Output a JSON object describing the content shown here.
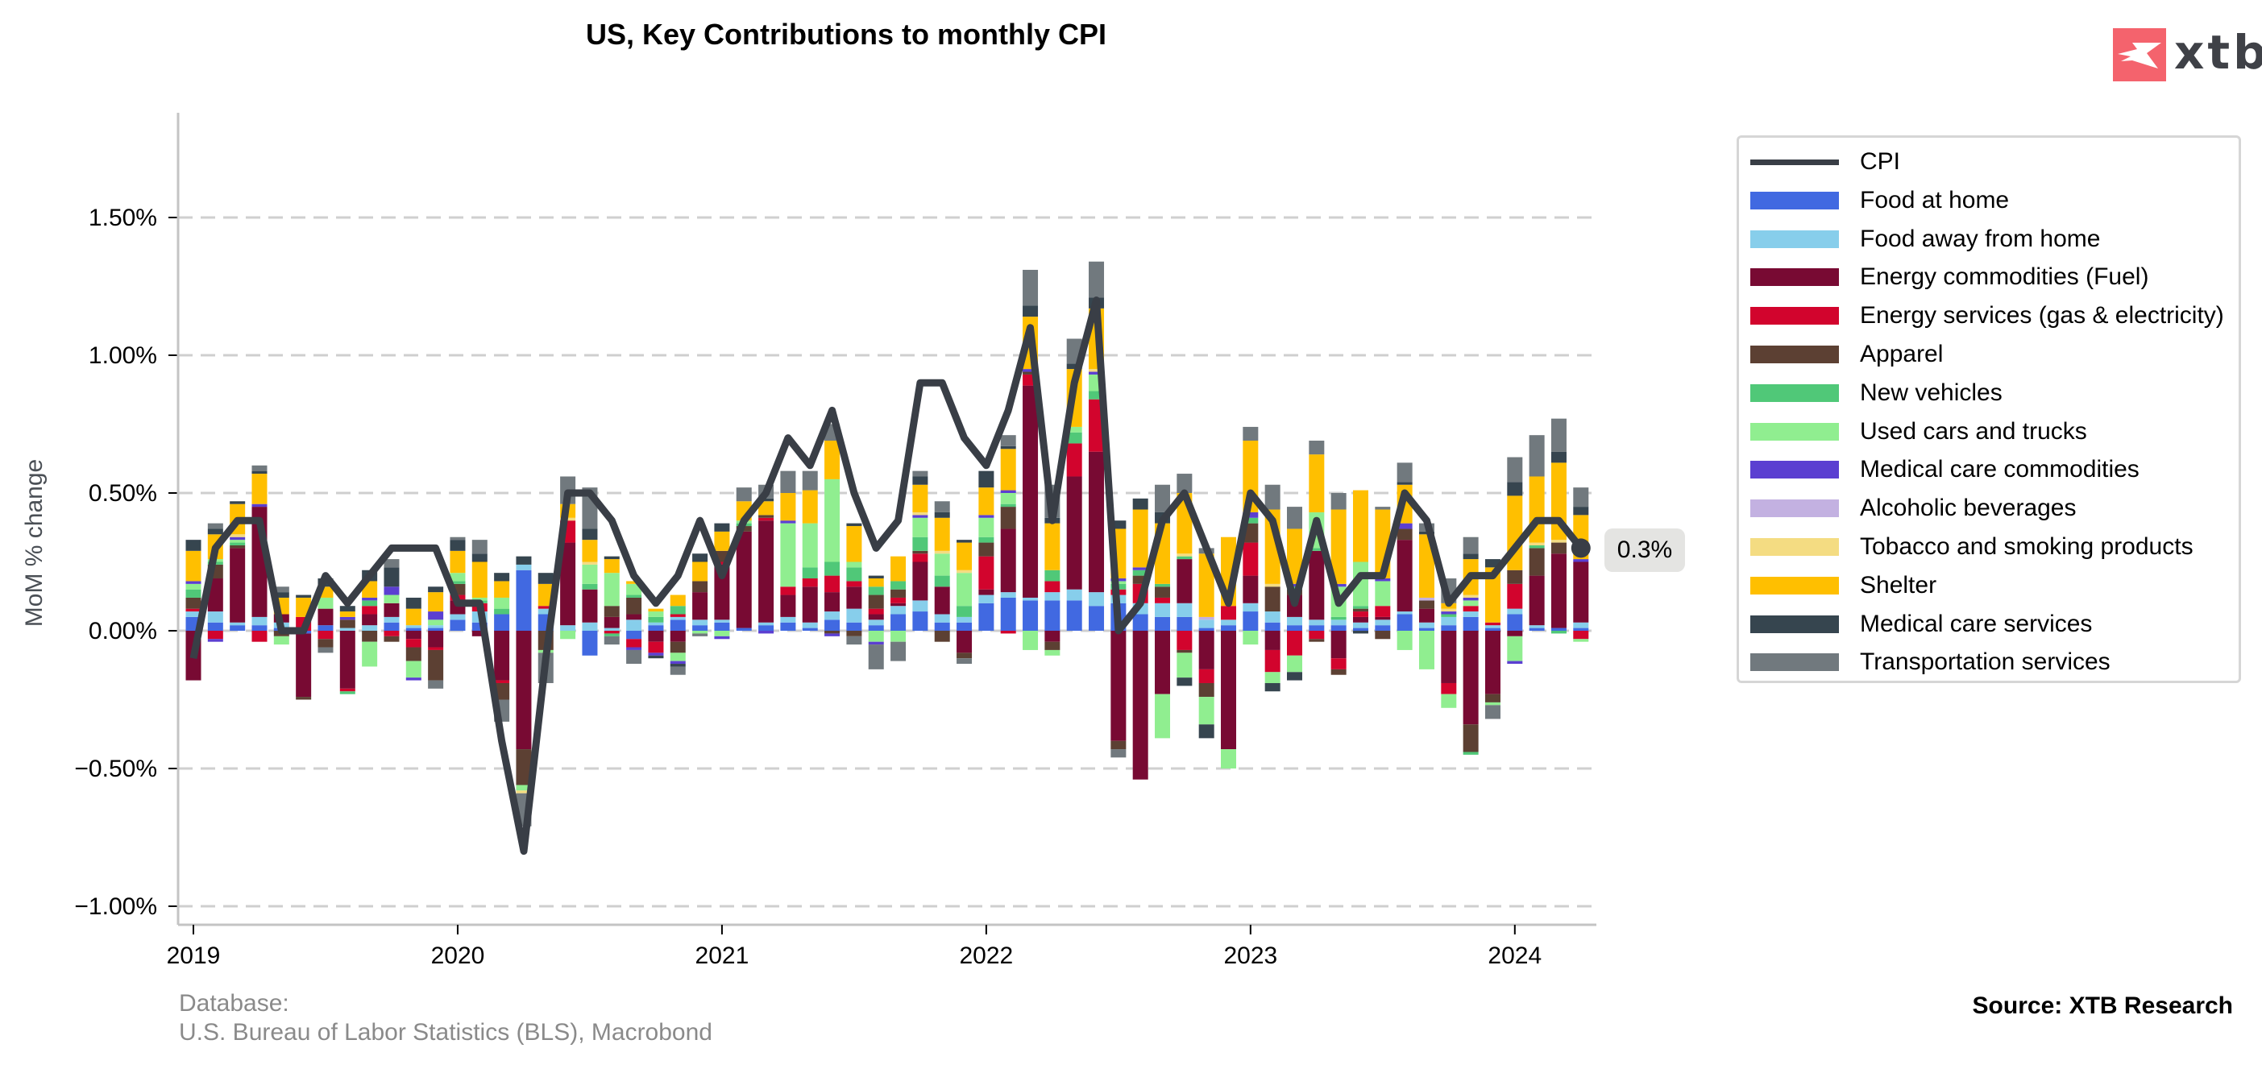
{
  "header": {
    "title": "US, Key Contributions to monthly CPI",
    "logo_text": "xtb"
  },
  "footer": {
    "database_label": "Database:",
    "database_value": "U.S. Bureau of Labor Statistics (BLS), Macrobond",
    "source": "Source: XTB Research"
  },
  "last_value_label": "0.3%",
  "chart_data": {
    "type": "bar",
    "stacked": true,
    "title": "US, Key Contributions to monthly CPI",
    "xlabel": "",
    "ylabel": "MoM % change",
    "ylim": [
      -1.05,
      1.88
    ],
    "yticks": [
      -1.0,
      -0.5,
      0.0,
      0.5,
      1.0,
      1.5
    ],
    "ytick_labels": [
      "−1.00%",
      "−0.50%",
      "0.00%",
      "0.50%",
      "1.00%",
      "1.50%"
    ],
    "xticks": [
      "2019",
      "2020",
      "2021",
      "2022",
      "2023",
      "2024"
    ],
    "grid": "horizontal-dashed",
    "legend_position": "right",
    "start_month": "2019-01",
    "n_months": 64,
    "line_series": {
      "name": "CPI",
      "color": "#393e46",
      "values": [
        -0.1,
        0.3,
        0.4,
        0.4,
        0.0,
        0.0,
        0.2,
        0.1,
        0.2,
        0.3,
        0.3,
        0.3,
        0.1,
        0.1,
        -0.4,
        -0.8,
        -0.1,
        0.5,
        0.5,
        0.4,
        0.2,
        0.1,
        0.2,
        0.4,
        0.2,
        0.4,
        0.5,
        0.7,
        0.6,
        0.8,
        0.5,
        0.3,
        0.4,
        0.9,
        0.9,
        0.7,
        0.6,
        0.8,
        1.1,
        0.4,
        0.9,
        1.2,
        0.0,
        0.1,
        0.4,
        0.5,
        0.3,
        0.1,
        0.5,
        0.4,
        0.1,
        0.4,
        0.1,
        0.2,
        0.2,
        0.5,
        0.4,
        0.1,
        0.2,
        0.2,
        0.3,
        0.4,
        0.4,
        0.3
      ]
    },
    "series": [
      {
        "name": "Food at home",
        "color": "#4169e1"
      },
      {
        "name": "Food away from home",
        "color": "#87ceeb"
      },
      {
        "name": "Energy commodities (Fuel)",
        "color": "#780a33"
      },
      {
        "name": "Energy services (gas & electricity)",
        "color": "#d2042d"
      },
      {
        "name": "Apparel",
        "color": "#5c4033"
      },
      {
        "name": "New vehicles",
        "color": "#50c878"
      },
      {
        "name": "Used cars and trucks",
        "color": "#90ee90"
      },
      {
        "name": "Medical care commodities",
        "color": "#5b3fd1"
      },
      {
        "name": "Alcoholic beverages",
        "color": "#c3b1e1"
      },
      {
        "name": "Tobacco and smoking products",
        "color": "#f4dc82"
      },
      {
        "name": "Shelter",
        "color": "#ffbf00"
      },
      {
        "name": "Medical care services",
        "color": "#36454f"
      },
      {
        "name": "Transportation services",
        "color": "#71797e"
      }
    ],
    "components": [
      [
        0.05,
        0.02,
        -0.18,
        0.01,
        0.04,
        0.03,
        0.02,
        0.01,
        0.0,
        0.0,
        0.11,
        0.04,
        0.0
      ],
      [
        0.03,
        0.04,
        0.12,
        -0.03,
        0.05,
        0.01,
        0.01,
        -0.01,
        0.0,
        0.0,
        0.09,
        0.02,
        0.02
      ],
      [
        0.02,
        0.01,
        0.27,
        0.0,
        0.01,
        0.01,
        0.01,
        0.01,
        0.0,
        0.01,
        0.11,
        0.01,
        0.0
      ],
      [
        0.02,
        0.03,
        0.4,
        -0.04,
        0.0,
        0.0,
        0.0,
        0.01,
        0.0,
        0.0,
        0.11,
        0.01,
        0.02
      ],
      [
        0.01,
        0.02,
        0.03,
        0.0,
        -0.02,
        0.0,
        -0.03,
        0.0,
        0.0,
        0.0,
        0.06,
        0.02,
        0.02
      ],
      [
        -0.01,
        0.0,
        -0.23,
        0.05,
        -0.01,
        0.0,
        0.0,
        0.0,
        0.0,
        0.0,
        0.07,
        0.01,
        0.0
      ],
      [
        0.02,
        0.0,
        0.06,
        -0.03,
        -0.03,
        0.0,
        0.04,
        0.0,
        0.0,
        0.0,
        0.04,
        0.03,
        -0.02
      ],
      [
        0.0,
        0.01,
        -0.21,
        -0.01,
        0.03,
        -0.01,
        0.0,
        0.01,
        0.0,
        0.0,
        0.02,
        0.02,
        0.0
      ],
      [
        0.0,
        0.02,
        0.04,
        0.03,
        -0.04,
        0.02,
        -0.09,
        0.01,
        0.0,
        0.0,
        0.06,
        0.04,
        0.0
      ],
      [
        0.03,
        0.02,
        0.05,
        -0.02,
        -0.02,
        0.0,
        0.03,
        0.03,
        0.0,
        0.0,
        0.0,
        0.07,
        0.03
      ],
      [
        0.01,
        0.01,
        -0.03,
        -0.03,
        -0.05,
        0.0,
        -0.06,
        -0.01,
        0.0,
        0.0,
        0.06,
        0.04,
        0.0
      ],
      [
        0.01,
        0.01,
        -0.06,
        -0.01,
        -0.11,
        0.0,
        0.02,
        0.03,
        0.0,
        0.0,
        0.07,
        0.02,
        -0.03
      ],
      [
        0.04,
        0.02,
        0.05,
        0.02,
        0.04,
        0.01,
        0.03,
        0.0,
        0.0,
        0.0,
        0.08,
        0.04,
        0.01
      ],
      [
        0.03,
        0.04,
        -0.02,
        0.03,
        0.0,
        0.01,
        0.01,
        0.0,
        0.0,
        0.0,
        0.13,
        0.03,
        0.05
      ],
      [
        0.06,
        0.0,
        -0.18,
        -0.01,
        -0.06,
        0.02,
        0.04,
        0.0,
        0.0,
        0.0,
        0.06,
        0.03,
        -0.08
      ],
      [
        0.22,
        0.02,
        -0.43,
        0.0,
        -0.13,
        0.0,
        -0.02,
        0.0,
        0.0,
        -0.01,
        0.0,
        0.03,
        -0.12
      ],
      [
        0.06,
        0.02,
        0.0,
        0.01,
        -0.07,
        0.0,
        -0.01,
        0.0,
        0.0,
        0.0,
        0.08,
        0.04,
        -0.11
      ],
      [
        0.0,
        0.02,
        0.3,
        0.08,
        0.0,
        0.0,
        -0.03,
        0.0,
        0.0,
        0.01,
        0.05,
        0.0,
        0.1
      ],
      [
        -0.09,
        0.03,
        0.12,
        0.0,
        0.0,
        0.02,
        0.07,
        0.0,
        0.0,
        0.01,
        0.08,
        0.04,
        0.15
      ],
      [
        0.0,
        0.01,
        0.04,
        -0.01,
        0.04,
        -0.01,
        0.12,
        0.0,
        0.0,
        0.0,
        0.05,
        0.01,
        -0.03
      ],
      [
        -0.03,
        0.04,
        0.02,
        -0.03,
        0.06,
        0.01,
        0.04,
        -0.01,
        0.0,
        0.0,
        0.01,
        0.0,
        -0.05
      ],
      [
        0.02,
        0.01,
        -0.04,
        -0.04,
        0.0,
        0.02,
        0.02,
        -0.01,
        0.0,
        0.0,
        0.01,
        -0.01,
        0.0
      ],
      [
        0.04,
        0.01,
        -0.04,
        0.01,
        -0.04,
        0.03,
        -0.03,
        -0.01,
        0.0,
        0.0,
        0.04,
        -0.01,
        -0.03
      ],
      [
        0.02,
        0.02,
        0.1,
        0.0,
        0.04,
        0.0,
        -0.01,
        0.0,
        0.0,
        0.0,
        0.07,
        0.03,
        -0.01
      ],
      [
        0.03,
        0.01,
        0.2,
        0.01,
        0.04,
        0.0,
        -0.02,
        -0.01,
        0.0,
        0.0,
        0.07,
        0.03,
        0.0
      ],
      [
        0.01,
        0.0,
        0.35,
        0.0,
        0.02,
        0.01,
        0.01,
        0.0,
        0.0,
        0.0,
        0.07,
        0.0,
        0.05
      ],
      [
        0.02,
        0.01,
        0.37,
        0.01,
        0.01,
        0.0,
        0.0,
        -0.01,
        0.0,
        0.0,
        0.05,
        0.01,
        0.05
      ],
      [
        0.03,
        0.02,
        0.08,
        0.03,
        0.0,
        0.0,
        0.23,
        0.01,
        0.0,
        0.0,
        0.1,
        0.0,
        0.08
      ],
      [
        0.01,
        0.02,
        0.13,
        0.03,
        0.0,
        0.04,
        0.16,
        0.0,
        0.0,
        0.0,
        0.12,
        0.0,
        0.07
      ],
      [
        0.04,
        0.03,
        0.07,
        0.06,
        -0.01,
        0.05,
        0.3,
        -0.01,
        0.0,
        0.0,
        0.14,
        0.0,
        0.06
      ],
      [
        0.03,
        0.05,
        0.08,
        0.02,
        -0.02,
        0.05,
        0.02,
        0.0,
        0.0,
        0.0,
        0.13,
        0.01,
        -0.03
      ],
      [
        0.02,
        0.02,
        0.02,
        0.02,
        0.05,
        0.03,
        -0.04,
        -0.01,
        0.0,
        0.0,
        0.03,
        0.01,
        -0.09
      ],
      [
        0.06,
        0.03,
        0.01,
        0.02,
        0.03,
        0.03,
        -0.04,
        0.0,
        0.0,
        0.0,
        0.09,
        0.0,
        -0.07
      ],
      [
        0.07,
        0.04,
        0.14,
        0.03,
        0.01,
        0.05,
        0.07,
        0.01,
        0.0,
        0.01,
        0.1,
        0.03,
        0.02
      ],
      [
        0.03,
        0.03,
        0.1,
        0.0,
        -0.04,
        0.04,
        0.08,
        0.0,
        0.0,
        0.01,
        0.12,
        0.02,
        0.04
      ],
      [
        0.03,
        0.02,
        -0.08,
        0.0,
        -0.02,
        0.04,
        0.12,
        0.0,
        0.0,
        0.01,
        0.1,
        0.01,
        -0.02
      ],
      [
        0.1,
        0.03,
        0.02,
        0.12,
        0.05,
        0.02,
        0.07,
        0.01,
        0.0,
        0.0,
        0.1,
        0.06,
        0.0
      ],
      [
        0.12,
        0.02,
        0.23,
        -0.01,
        0.08,
        0.01,
        0.04,
        0.01,
        0.0,
        0.0,
        0.15,
        0.01,
        0.04
      ],
      [
        0.11,
        0.01,
        0.77,
        0.04,
        0.01,
        0.0,
        -0.07,
        0.01,
        0.0,
        0.0,
        0.19,
        0.04,
        0.13
      ],
      [
        0.11,
        0.03,
        -0.04,
        0.04,
        -0.03,
        0.04,
        -0.02,
        0.0,
        0.0,
        0.0,
        0.17,
        0.02,
        0.12
      ],
      [
        0.11,
        0.04,
        0.41,
        0.12,
        0.0,
        0.04,
        0.02,
        0.0,
        0.0,
        0.0,
        0.21,
        0.02,
        0.09
      ],
      [
        0.09,
        0.05,
        0.51,
        0.19,
        0.0,
        0.03,
        0.06,
        0.01,
        0.0,
        0.01,
        0.22,
        0.04,
        0.13
      ],
      [
        0.1,
        0.03,
        -0.4,
        0.02,
        -0.03,
        0.02,
        0.01,
        0.01,
        0.0,
        0.0,
        0.18,
        0.03,
        -0.03
      ],
      [
        0.06,
        0.04,
        -0.54,
        0.07,
        0.03,
        0.02,
        0.0,
        0.01,
        0.0,
        0.0,
        0.21,
        0.04,
        0.0
      ],
      [
        0.05,
        0.05,
        -0.23,
        0.02,
        0.04,
        0.01,
        -0.16,
        0.0,
        0.0,
        0.0,
        0.22,
        0.04,
        0.1
      ],
      [
        0.05,
        0.05,
        0.16,
        -0.07,
        -0.01,
        0.01,
        -0.09,
        0.0,
        0.0,
        0.01,
        0.22,
        -0.03,
        0.07
      ],
      [
        0.01,
        0.03,
        -0.14,
        -0.05,
        -0.05,
        0.0,
        -0.1,
        0.0,
        0.01,
        0.0,
        0.23,
        -0.05,
        0.02
      ],
      [
        0.02,
        0.02,
        -0.43,
        0.05,
        0.0,
        0.0,
        -0.07,
        0.0,
        0.0,
        0.0,
        0.25,
        0.0,
        0.0
      ],
      [
        0.07,
        0.03,
        0.1,
        0.12,
        0.07,
        0.02,
        -0.05,
        0.02,
        0.0,
        0.0,
        0.26,
        0.0,
        0.05
      ],
      [
        0.03,
        0.04,
        -0.07,
        -0.08,
        0.09,
        0.0,
        -0.04,
        0.0,
        0.0,
        0.01,
        0.27,
        -0.03,
        0.09
      ],
      [
        0.02,
        0.03,
        0.08,
        -0.09,
        0.02,
        0.01,
        -0.06,
        0.01,
        0.0,
        0.0,
        0.2,
        -0.03,
        0.08
      ],
      [
        0.02,
        0.02,
        0.25,
        -0.03,
        -0.01,
        0.01,
        0.13,
        0.0,
        0.0,
        0.0,
        0.21,
        0.0,
        0.05
      ],
      [
        0.02,
        0.02,
        -0.1,
        -0.04,
        -0.02,
        0.01,
        0.11,
        0.01,
        0.0,
        0.0,
        0.27,
        0.0,
        0.06
      ],
      [
        0.01,
        0.02,
        0.02,
        0.02,
        0.01,
        0.01,
        0.16,
        0.0,
        0.0,
        0.0,
        0.26,
        -0.01,
        0.0
      ],
      [
        0.02,
        0.02,
        0.01,
        0.04,
        -0.03,
        0.0,
        0.09,
        0.01,
        0.0,
        0.0,
        0.25,
        0.0,
        0.01
      ],
      [
        0.06,
        0.01,
        0.26,
        0.0,
        0.04,
        0.0,
        -0.07,
        0.02,
        0.0,
        0.0,
        0.14,
        0.01,
        0.07
      ],
      [
        0.01,
        0.02,
        0.05,
        0.0,
        0.03,
        0.0,
        -0.14,
        0.0,
        0.01,
        0.0,
        0.23,
        0.01,
        0.03
      ],
      [
        0.02,
        0.03,
        -0.19,
        -0.04,
        0.0,
        0.01,
        -0.05,
        0.01,
        0.0,
        0.01,
        0.02,
        0.0,
        0.09
      ],
      [
        0.05,
        0.02,
        -0.34,
        0.02,
        -0.1,
        -0.01,
        0.02,
        0.01,
        0.0,
        0.01,
        0.13,
        0.02,
        0.06
      ],
      [
        0.01,
        0.01,
        -0.23,
        0.01,
        -0.03,
        0.0,
        -0.01,
        0.0,
        0.0,
        0.0,
        0.2,
        0.03,
        -0.05
      ],
      [
        0.06,
        0.02,
        -0.02,
        0.09,
        0.05,
        0.0,
        -0.09,
        -0.01,
        0.0,
        0.0,
        0.27,
        0.05,
        0.09
      ],
      [
        0.01,
        0.01,
        0.18,
        0.0,
        0.1,
        0.01,
        0.0,
        0.0,
        0.0,
        0.01,
        0.24,
        0.0,
        0.15
      ],
      [
        0.01,
        0.0,
        0.27,
        0.0,
        0.04,
        -0.01,
        0.0,
        0.0,
        0.0,
        0.01,
        0.28,
        0.04,
        0.12
      ],
      [
        0.01,
        0.02,
        0.22,
        -0.03,
        0.0,
        0.0,
        -0.01,
        0.01,
        0.0,
        0.0,
        0.16,
        0.03,
        0.07
      ]
    ]
  }
}
